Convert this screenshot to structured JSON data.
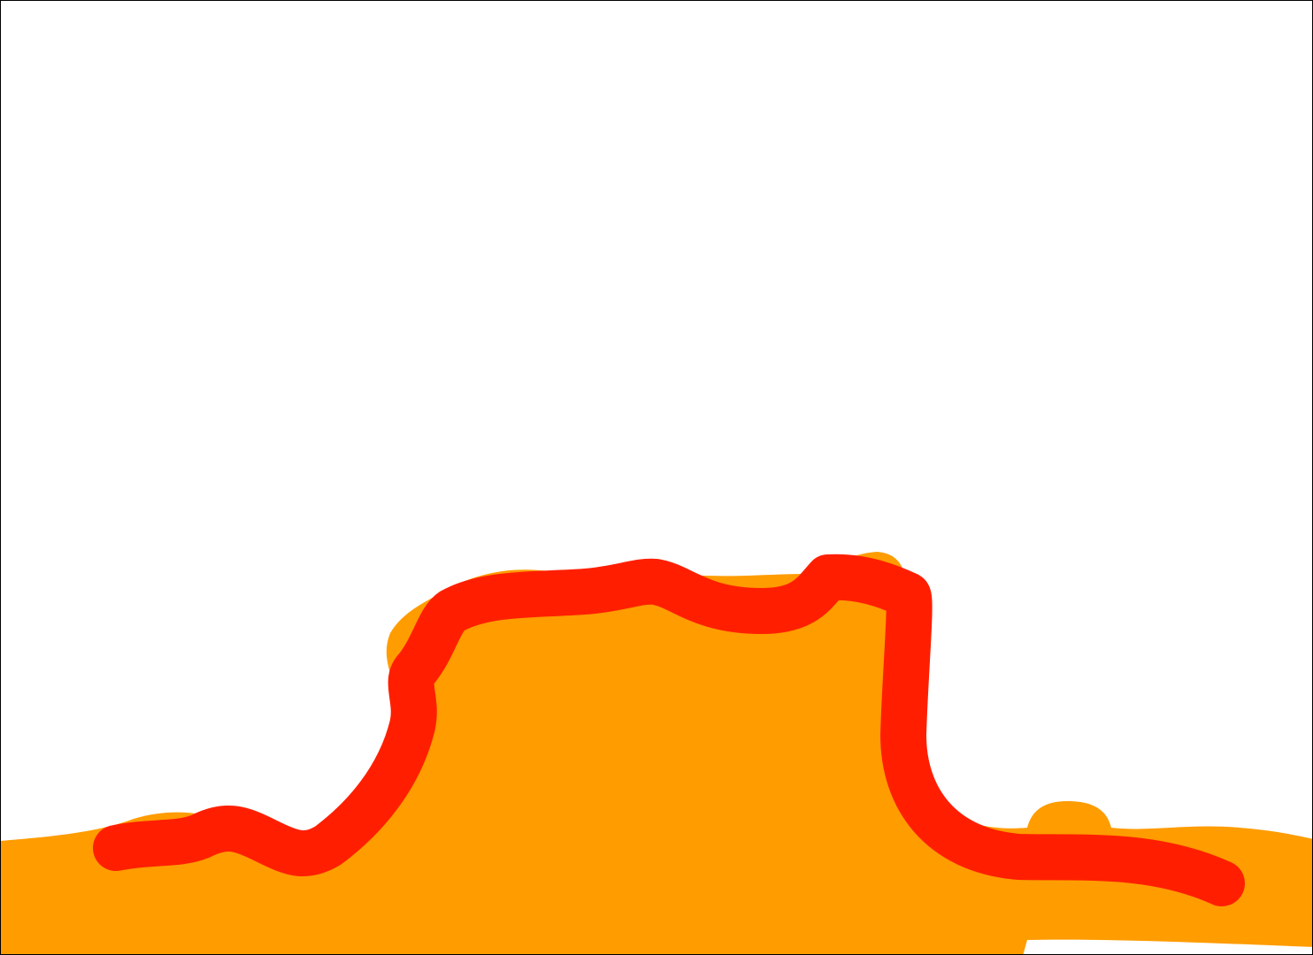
{
  "canvas": {
    "background_color": "#ffffff",
    "border_color": "#000000"
  },
  "drawing": {
    "fill_color": "#ff9c00",
    "stroke_color": "#ff1f00",
    "subject": "orange-mesa-with-red-outline"
  }
}
